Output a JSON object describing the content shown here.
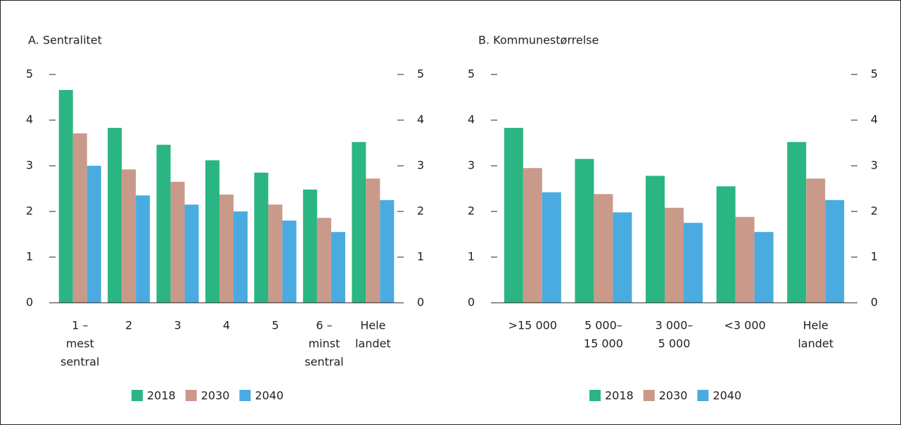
{
  "chart_data": [
    {
      "type": "bar",
      "title": "A.  Sentralitet",
      "categories": [
        [
          "1 –",
          "mest",
          "sentral"
        ],
        [
          "2"
        ],
        [
          "3"
        ],
        [
          "4"
        ],
        [
          "5"
        ],
        [
          "6 –",
          "minst",
          "sentral"
        ],
        [
          "Hele",
          "landet"
        ]
      ],
      "series": [
        {
          "name": "2018",
          "color": "#2bb583",
          "values": [
            4.66,
            3.83,
            3.46,
            3.12,
            2.85,
            2.48,
            3.52
          ]
        },
        {
          "name": "2030",
          "color": "#c99a8a",
          "values": [
            3.71,
            2.92,
            2.65,
            2.37,
            2.15,
            1.86,
            2.72
          ]
        },
        {
          "name": "2040",
          "color": "#4aabe0",
          "values": [
            3.0,
            2.35,
            2.15,
            2.0,
            1.8,
            1.55,
            2.25
          ]
        }
      ],
      "ylim": [
        0,
        5
      ],
      "yticks": [
        0,
        1,
        2,
        3,
        4,
        5
      ]
    },
    {
      "type": "bar",
      "title": "B.  Kommunestørrelse",
      "categories": [
        [
          ">15 000"
        ],
        [
          "5 000–",
          "15 000"
        ],
        [
          "3 000–",
          "5 000"
        ],
        [
          "<3 000"
        ],
        [
          "Hele",
          "landet"
        ]
      ],
      "series": [
        {
          "name": "2018",
          "color": "#2bb583",
          "values": [
            3.83,
            3.15,
            2.78,
            2.55,
            3.52
          ]
        },
        {
          "name": "2030",
          "color": "#c99a8a",
          "values": [
            2.95,
            2.38,
            2.08,
            1.88,
            2.72
          ]
        },
        {
          "name": "2040",
          "color": "#4aabe0",
          "values": [
            2.42,
            1.98,
            1.75,
            1.55,
            2.25
          ]
        }
      ],
      "ylim": [
        0,
        5
      ],
      "yticks": [
        0,
        1,
        2,
        3,
        4,
        5
      ]
    }
  ]
}
